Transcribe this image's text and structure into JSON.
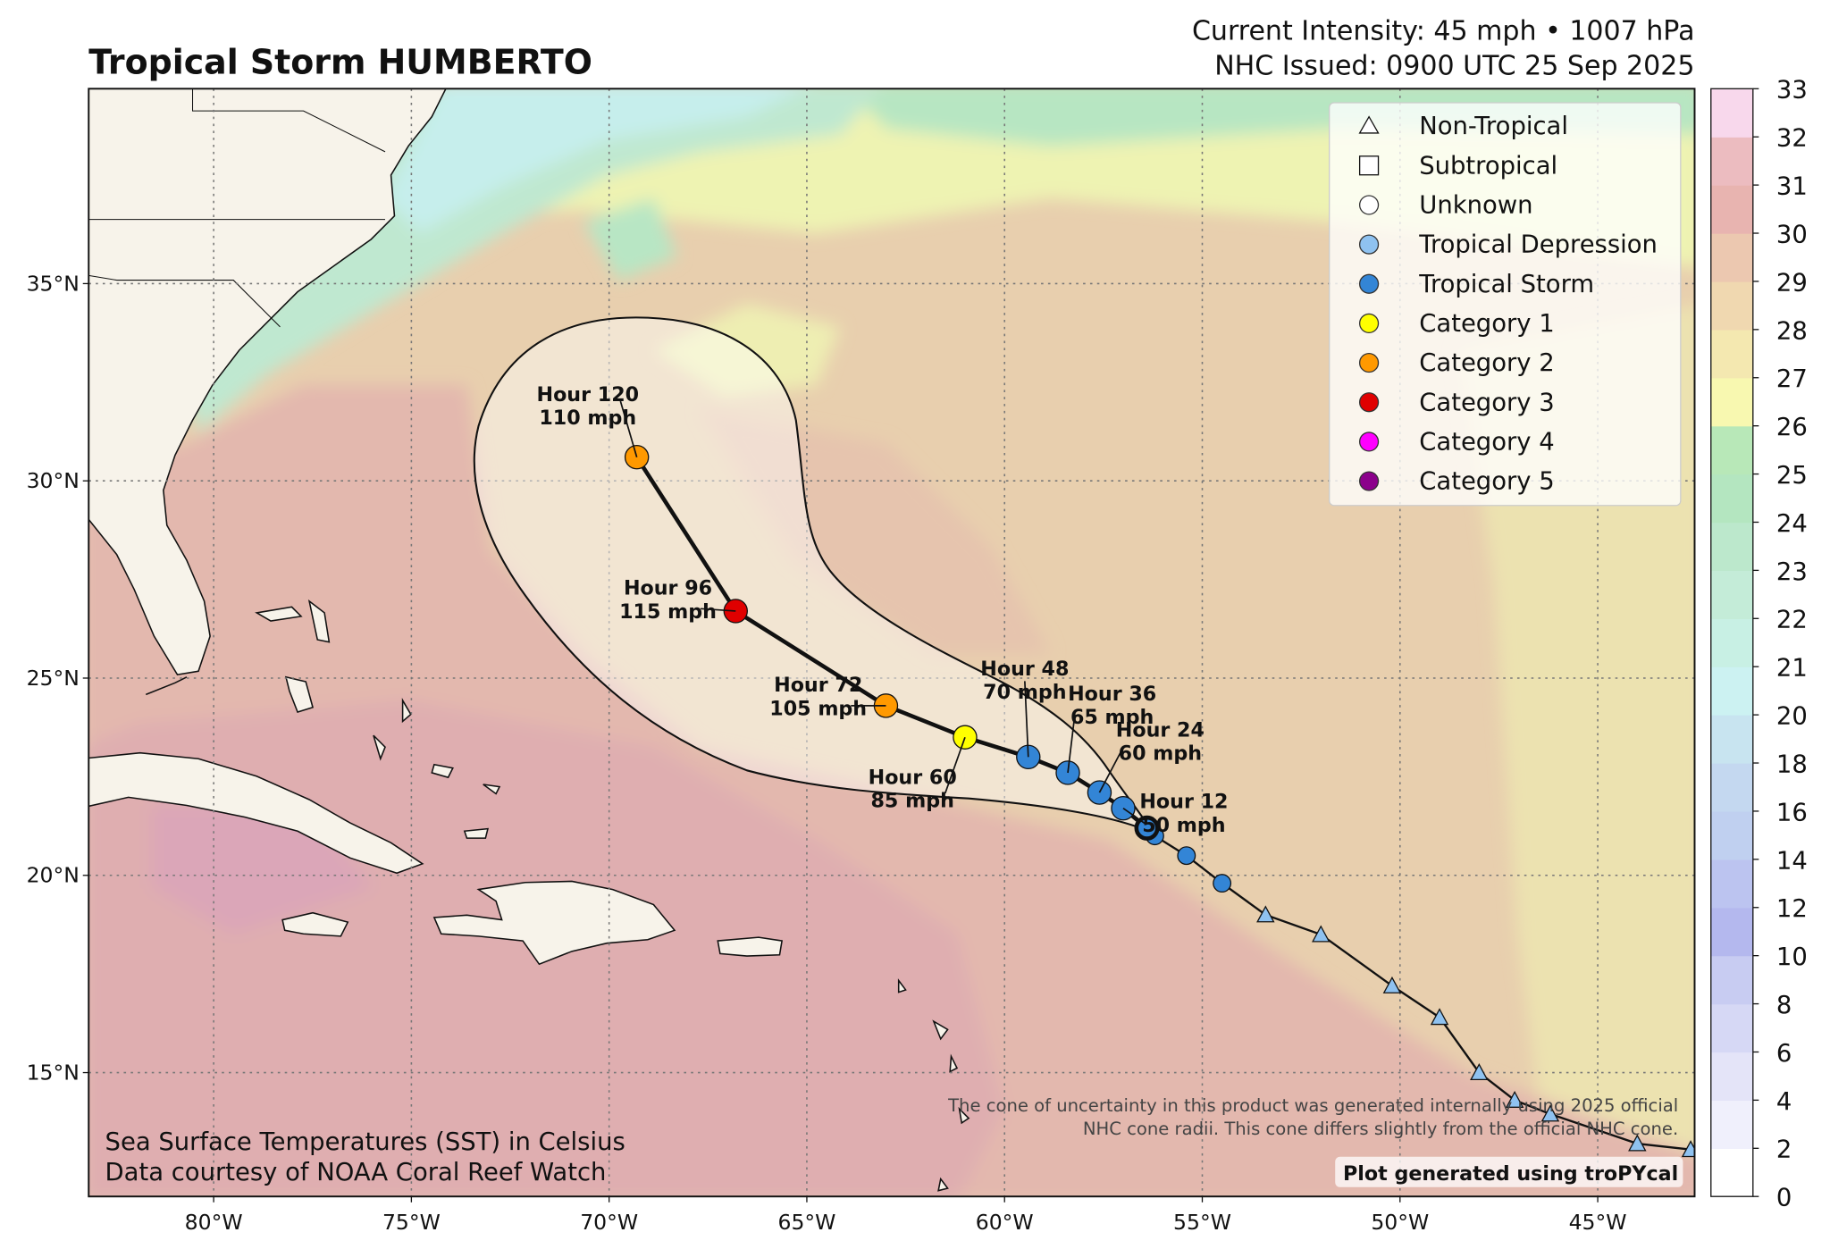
{
  "header": {
    "title": "Tropical Storm HUMBERTO",
    "intensity": "Current Intensity: 45 mph • 1007 hPa",
    "issued": "NHC Issued: 0900 UTC 25 Sep 2025"
  },
  "map": {
    "lon_range": [
      -83.16,
      -42.55
    ],
    "lat_range": [
      11.86,
      39.94
    ],
    "lon_ticks": [
      {
        "value": -80,
        "label": "80°W"
      },
      {
        "value": -75,
        "label": "75°W"
      },
      {
        "value": -70,
        "label": "70°W"
      },
      {
        "value": -65,
        "label": "65°W"
      },
      {
        "value": -60,
        "label": "60°W"
      },
      {
        "value": -55,
        "label": "55°W"
      },
      {
        "value": -50,
        "label": "50°W"
      },
      {
        "value": -45,
        "label": "45°W"
      }
    ],
    "lat_ticks": [
      {
        "value": 15,
        "label": "15°N"
      },
      {
        "value": 20,
        "label": "20°N"
      },
      {
        "value": 25,
        "label": "25°N"
      },
      {
        "value": 30,
        "label": "30°N"
      },
      {
        "value": 35,
        "label": "35°N"
      }
    ],
    "gridlines": true
  },
  "past_track": [
    {
      "lon": -42.65,
      "lat": 13.05,
      "type": "Non-Tropical"
    },
    {
      "lon": -44.0,
      "lat": 13.2,
      "type": "Non-Tropical"
    },
    {
      "lon": -46.2,
      "lat": 13.95,
      "type": "Non-Tropical"
    },
    {
      "lon": -47.1,
      "lat": 14.3,
      "type": "Non-Tropical"
    },
    {
      "lon": -48.0,
      "lat": 15.0,
      "type": "Non-Tropical"
    },
    {
      "lon": -49.0,
      "lat": 16.4,
      "type": "Non-Tropical"
    },
    {
      "lon": -50.2,
      "lat": 17.2,
      "type": "Non-Tropical"
    },
    {
      "lon": -52.0,
      "lat": 18.5,
      "type": "Non-Tropical"
    },
    {
      "lon": -53.4,
      "lat": 19.0,
      "type": "Non-Tropical"
    },
    {
      "lon": -54.5,
      "lat": 19.8,
      "type": "Tropical Storm"
    },
    {
      "lon": -55.4,
      "lat": 20.5,
      "type": "Tropical Storm"
    },
    {
      "lon": -56.2,
      "lat": 21.0,
      "type": "Tropical Storm"
    }
  ],
  "forecast": [
    {
      "hour": 0,
      "lon": -56.4,
      "lat": 21.2,
      "type": "Tropical Storm",
      "label": ""
    },
    {
      "hour": 12,
      "lon": -57.0,
      "lat": 21.7,
      "type": "Tropical Storm",
      "label": "Hour 12",
      "wind": "50 mph"
    },
    {
      "hour": 24,
      "lon": -57.6,
      "lat": 22.1,
      "type": "Tropical Storm",
      "label": "Hour 24",
      "wind": "60 mph"
    },
    {
      "hour": 36,
      "lon": -58.4,
      "lat": 22.6,
      "type": "Tropical Storm",
      "label": "Hour 36",
      "wind": "65 mph"
    },
    {
      "hour": 48,
      "lon": -59.4,
      "lat": 23.0,
      "type": "Tropical Storm",
      "label": "Hour 48",
      "wind": "70 mph"
    },
    {
      "hour": 60,
      "lon": -61.0,
      "lat": 23.5,
      "type": "Category 1",
      "label": "Hour 60",
      "wind": "85 mph"
    },
    {
      "hour": 72,
      "lon": -63.0,
      "lat": 24.3,
      "type": "Category 2",
      "label": "Hour 72",
      "wind": "105 mph"
    },
    {
      "hour": 96,
      "lon": -66.8,
      "lat": 26.7,
      "type": "Category 3",
      "label": "Hour 96",
      "wind": "115 mph"
    },
    {
      "hour": 120,
      "lon": -69.3,
      "lat": 30.6,
      "type": "Category 2",
      "label": "Hour 120",
      "wind": "110 mph"
    }
  ],
  "legend": {
    "position": "top-right",
    "items": [
      {
        "label": "Non-Tropical",
        "marker": "triangle",
        "color": "#ffffff"
      },
      {
        "label": "Subtropical",
        "marker": "square",
        "color": "#ffffff"
      },
      {
        "label": "Unknown",
        "marker": "circle",
        "color": "#ffffff"
      },
      {
        "label": "Tropical Depression",
        "marker": "circle",
        "color": "#8fc2f0"
      },
      {
        "label": "Tropical Storm",
        "marker": "circle",
        "color": "#3385d6"
      },
      {
        "label": "Category 1",
        "marker": "circle",
        "color": "#ffff00"
      },
      {
        "label": "Category 2",
        "marker": "circle",
        "color": "#ff9900"
      },
      {
        "label": "Category 3",
        "marker": "circle",
        "color": "#e00000"
      },
      {
        "label": "Category 4",
        "marker": "circle",
        "color": "#ff00ff"
      },
      {
        "label": "Category 5",
        "marker": "circle",
        "color": "#8b008b"
      }
    ]
  },
  "colorbar": {
    "ticks": [
      0,
      2,
      4,
      6,
      8,
      10,
      12,
      14,
      16,
      18,
      20,
      21,
      22,
      23,
      24,
      25,
      26,
      27,
      28,
      29,
      30,
      31,
      32,
      33
    ],
    "colors": [
      "#ffffff",
      "#f0f0fc",
      "#e4e4f8",
      "#d6d8f5",
      "#c8ccf2",
      "#b4b8ee",
      "#bcc4f0",
      "#c0d0f0",
      "#c4d8f0",
      "#c8e4f0",
      "#ccf2f2",
      "#c8f0e4",
      "#c4ecd8",
      "#bce8cc",
      "#b4e6c0",
      "#b8e8b8",
      "#f8f8b0",
      "#f4e8b0",
      "#f0d8b0",
      "#ecc8b0",
      "#e8b4b0",
      "#ecbcc0",
      "#f8d8ec"
    ]
  },
  "notes": {
    "cone_line1": "The cone of uncertainty in this product was generated internally using 2025 official",
    "cone_line2": "NHC cone radii. This cone differs slightly from the official NHC cone.",
    "sst_line1": "Sea Surface Temperatures (SST) in Celsius",
    "sst_line2": "Data courtesy of NOAA Coral Reef Watch",
    "credit": "Plot generated using troPYcal"
  }
}
